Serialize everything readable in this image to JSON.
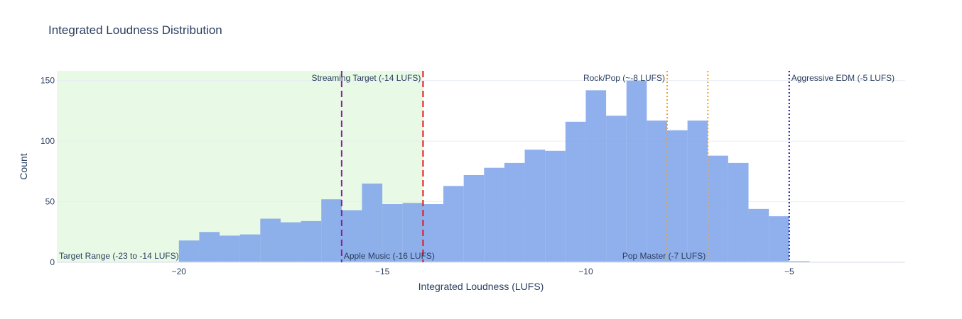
{
  "chart_data": {
    "type": "bar",
    "title": "Integrated Loudness Distribution",
    "xlabel": "Integrated Loudness (LUFS)",
    "ylabel": "Count",
    "xlim": [
      -23.0,
      -2.15
    ],
    "ylim": [
      0,
      158
    ],
    "x_ticks": [
      -20,
      -15,
      -10,
      -5
    ],
    "x_tick_labels": [
      "−20",
      "−15",
      "−10",
      "−5"
    ],
    "y_ticks": [
      0,
      50,
      100,
      150
    ],
    "y_tick_labels": [
      "0",
      "50",
      "100",
      "150"
    ],
    "grid": true,
    "bar_color": "#7da2ea",
    "bins": [
      {
        "start": -20.0,
        "end": -19.5,
        "count": 18
      },
      {
        "start": -19.5,
        "end": -19.0,
        "count": 25
      },
      {
        "start": -19.0,
        "end": -18.5,
        "count": 22
      },
      {
        "start": -18.5,
        "end": -18.0,
        "count": 23
      },
      {
        "start": -18.0,
        "end": -17.5,
        "count": 36
      },
      {
        "start": -17.5,
        "end": -17.0,
        "count": 33
      },
      {
        "start": -17.0,
        "end": -16.5,
        "count": 34
      },
      {
        "start": -16.5,
        "end": -16.0,
        "count": 52
      },
      {
        "start": -16.0,
        "end": -15.5,
        "count": 43
      },
      {
        "start": -15.5,
        "end": -15.0,
        "count": 65
      },
      {
        "start": -15.0,
        "end": -14.5,
        "count": 48
      },
      {
        "start": -14.5,
        "end": -14.0,
        "count": 49
      },
      {
        "start": -14.0,
        "end": -13.5,
        "count": 48
      },
      {
        "start": -13.5,
        "end": -13.0,
        "count": 63
      },
      {
        "start": -13.0,
        "end": -12.5,
        "count": 72
      },
      {
        "start": -12.5,
        "end": -12.0,
        "count": 78
      },
      {
        "start": -12.0,
        "end": -11.5,
        "count": 82
      },
      {
        "start": -11.5,
        "end": -11.0,
        "count": 93
      },
      {
        "start": -11.0,
        "end": -10.5,
        "count": 92
      },
      {
        "start": -10.5,
        "end": -10.0,
        "count": 116
      },
      {
        "start": -10.0,
        "end": -9.5,
        "count": 142
      },
      {
        "start": -9.5,
        "end": -9.0,
        "count": 121
      },
      {
        "start": -9.0,
        "end": -8.5,
        "count": 150
      },
      {
        "start": -8.5,
        "end": -8.0,
        "count": 117
      },
      {
        "start": -8.0,
        "end": -7.5,
        "count": 109
      },
      {
        "start": -7.5,
        "end": -7.0,
        "count": 117
      },
      {
        "start": -7.0,
        "end": -6.5,
        "count": 88
      },
      {
        "start": -6.5,
        "end": -6.0,
        "count": 82
      },
      {
        "start": -6.0,
        "end": -5.5,
        "count": 44
      },
      {
        "start": -5.5,
        "end": -5.0,
        "count": 38
      },
      {
        "start": -5.0,
        "end": -4.5,
        "count": 1
      }
    ],
    "shaded_range": {
      "x0": -23,
      "x1": -14,
      "label": "Target Range (-23 to -14 LUFS)",
      "color": "#e8f9e6"
    },
    "reference_lines": [
      {
        "x": -16,
        "label": "Apple Music (-16 LUFS)",
        "color": "#8e1b9e",
        "style": "dash",
        "label_position": "bottom-right"
      },
      {
        "x": -14,
        "label": "Streaming Target (-14 LUFS)",
        "color": "#e8111b",
        "style": "dash",
        "label_position": "top-left"
      },
      {
        "x": -8,
        "label": "Rock/Pop (~-8 LUFS)",
        "color": "#f5a023",
        "style": "dot",
        "label_position": "top-left"
      },
      {
        "x": -7,
        "label": "Pop Master (-7 LUFS)",
        "color": "#f5a023",
        "style": "dot",
        "label_position": "bottom-left"
      },
      {
        "x": -5,
        "label": "Aggressive EDM (-5 LUFS)",
        "color": "#12129e",
        "style": "dot",
        "label_position": "top-right"
      }
    ]
  }
}
